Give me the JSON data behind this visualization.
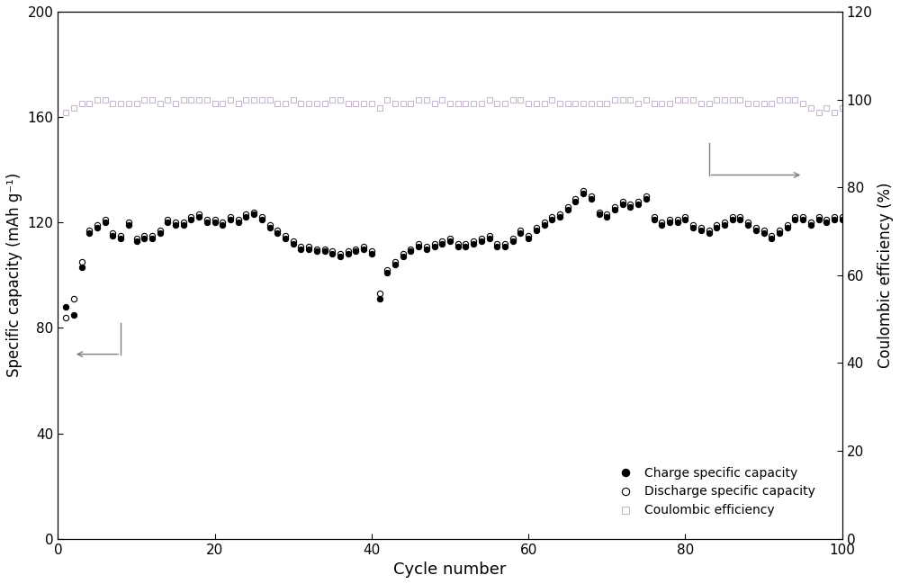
{
  "xlabel": "Cycle number",
  "ylabel_left": "Specific capacity (mAh g⁻¹)",
  "ylabel_right": "Coulombic efficiency (%)",
  "xlim": [
    0,
    100
  ],
  "ylim_left": [
    0,
    200
  ],
  "ylim_right": [
    0,
    120
  ],
  "yticks_left": [
    0,
    40,
    80,
    120,
    160,
    200
  ],
  "yticks_right": [
    0,
    20,
    40,
    60,
    80,
    100,
    120
  ],
  "xticks": [
    0,
    20,
    40,
    60,
    80,
    100
  ],
  "charge_x": [
    1,
    2,
    3,
    4,
    5,
    6,
    7,
    8,
    9,
    10,
    11,
    12,
    13,
    14,
    15,
    16,
    17,
    18,
    19,
    20,
    21,
    22,
    23,
    24,
    25,
    26,
    27,
    28,
    29,
    30,
    31,
    32,
    33,
    34,
    35,
    36,
    37,
    38,
    39,
    40,
    41,
    42,
    43,
    44,
    45,
    46,
    47,
    48,
    49,
    50,
    51,
    52,
    53,
    54,
    55,
    56,
    57,
    58,
    59,
    60,
    61,
    62,
    63,
    64,
    65,
    66,
    67,
    68,
    69,
    70,
    71,
    72,
    73,
    74,
    75,
    76,
    77,
    78,
    79,
    80,
    81,
    82,
    83,
    84,
    85,
    86,
    87,
    88,
    89,
    90,
    91,
    92,
    93,
    94,
    95,
    96,
    97,
    98,
    99,
    100
  ],
  "charge_y": [
    88,
    85,
    103,
    116,
    118,
    120,
    115,
    114,
    119,
    113,
    114,
    114,
    116,
    120,
    119,
    119,
    121,
    122,
    120,
    120,
    119,
    121,
    120,
    122,
    123,
    121,
    118,
    116,
    114,
    112,
    110,
    110,
    109,
    109,
    108,
    107,
    108,
    109,
    110,
    108,
    91,
    101,
    104,
    107,
    109,
    111,
    110,
    111,
    112,
    113,
    111,
    111,
    112,
    113,
    114,
    111,
    111,
    113,
    116,
    114,
    117,
    119,
    121,
    122,
    125,
    128,
    131,
    129,
    123,
    122,
    125,
    127,
    126,
    127,
    129,
    121,
    119,
    120,
    120,
    121,
    118,
    117,
    116,
    118,
    119,
    121,
    121,
    119,
    117,
    116,
    114,
    116,
    118,
    121,
    121,
    119,
    121,
    120,
    121,
    121
  ],
  "discharge_x": [
    1,
    2,
    3,
    4,
    5,
    6,
    7,
    8,
    9,
    10,
    11,
    12,
    13,
    14,
    15,
    16,
    17,
    18,
    19,
    20,
    21,
    22,
    23,
    24,
    25,
    26,
    27,
    28,
    29,
    30,
    31,
    32,
    33,
    34,
    35,
    36,
    37,
    38,
    39,
    40,
    41,
    42,
    43,
    44,
    45,
    46,
    47,
    48,
    49,
    50,
    51,
    52,
    53,
    54,
    55,
    56,
    57,
    58,
    59,
    60,
    61,
    62,
    63,
    64,
    65,
    66,
    67,
    68,
    69,
    70,
    71,
    72,
    73,
    74,
    75,
    76,
    77,
    78,
    79,
    80,
    81,
    82,
    83,
    84,
    85,
    86,
    87,
    88,
    89,
    90,
    91,
    92,
    93,
    94,
    95,
    96,
    97,
    98,
    99,
    100
  ],
  "discharge_y": [
    84,
    91,
    105,
    117,
    119,
    121,
    116,
    115,
    120,
    114,
    115,
    115,
    117,
    121,
    120,
    120,
    122,
    123,
    121,
    121,
    120,
    122,
    121,
    123,
    124,
    122,
    119,
    117,
    115,
    113,
    111,
    111,
    110,
    110,
    109,
    108,
    109,
    110,
    111,
    109,
    93,
    102,
    105,
    108,
    110,
    112,
    111,
    112,
    113,
    114,
    112,
    112,
    113,
    114,
    115,
    112,
    112,
    114,
    117,
    115,
    118,
    120,
    122,
    123,
    126,
    129,
    132,
    130,
    124,
    123,
    126,
    128,
    127,
    128,
    130,
    122,
    120,
    121,
    121,
    122,
    119,
    118,
    117,
    119,
    120,
    122,
    122,
    120,
    118,
    117,
    115,
    117,
    119,
    122,
    122,
    120,
    122,
    121,
    122,
    122
  ],
  "coulombic_x": [
    1,
    2,
    3,
    4,
    5,
    6,
    7,
    8,
    9,
    10,
    11,
    12,
    13,
    14,
    15,
    16,
    17,
    18,
    19,
    20,
    21,
    22,
    23,
    24,
    25,
    26,
    27,
    28,
    29,
    30,
    31,
    32,
    33,
    34,
    35,
    36,
    37,
    38,
    39,
    40,
    41,
    42,
    43,
    44,
    45,
    46,
    47,
    48,
    49,
    50,
    51,
    52,
    53,
    54,
    55,
    56,
    57,
    58,
    59,
    60,
    61,
    62,
    63,
    64,
    65,
    66,
    67,
    68,
    69,
    70,
    71,
    72,
    73,
    74,
    75,
    76,
    77,
    78,
    79,
    80,
    81,
    82,
    83,
    84,
    85,
    86,
    87,
    88,
    89,
    90,
    91,
    92,
    93,
    94,
    95,
    96,
    97,
    98,
    99,
    100
  ],
  "coulombic_y": [
    97,
    98,
    99,
    99,
    100,
    100,
    99,
    99,
    99,
    99,
    100,
    100,
    99,
    100,
    99,
    100,
    100,
    100,
    100,
    99,
    99,
    100,
    99,
    100,
    100,
    100,
    100,
    99,
    99,
    100,
    99,
    99,
    99,
    99,
    100,
    100,
    99,
    99,
    99,
    99,
    98,
    100,
    99,
    99,
    99,
    100,
    100,
    99,
    100,
    99,
    99,
    99,
    99,
    99,
    100,
    99,
    99,
    100,
    100,
    99,
    99,
    99,
    100,
    99,
    99,
    99,
    99,
    99,
    99,
    99,
    100,
    100,
    100,
    99,
    100,
    99,
    99,
    99,
    100,
    100,
    100,
    99,
    99,
    100,
    100,
    100,
    100,
    99,
    99,
    99,
    99,
    100,
    100,
    100,
    99,
    98,
    97,
    98,
    97,
    98
  ],
  "charge_color": "#000000",
  "discharge_color": "#000000",
  "coulombic_color": "#c8b8d0",
  "marker_size": 4.5,
  "figsize": [
    10.0,
    6.49
  ],
  "dpi": 100,
  "bg_color": "#ffffff",
  "ann_left_x1": 8,
  "ann_left_x2": 2,
  "ann_left_y": 70,
  "ann_right_x1": 83,
  "ann_right_x2": 95,
  "ann_right_y": 138
}
